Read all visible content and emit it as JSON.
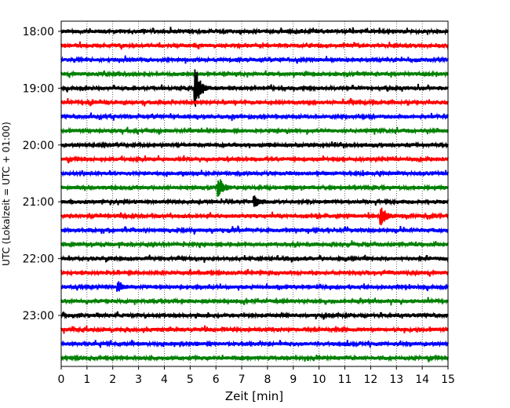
{
  "chart_data": {
    "type": "line",
    "title": "",
    "xlabel": "Zeit  [min]",
    "ylabel": "UTC (Lokalzeit = UTC + 01:00)",
    "xlim": [
      0,
      15
    ],
    "x_ticks": [
      0,
      1,
      2,
      3,
      4,
      5,
      6,
      7,
      8,
      9,
      10,
      11,
      12,
      13,
      14,
      15
    ],
    "y_tick_labels": [
      "18:00",
      "19:00",
      "20:00",
      "21:00",
      "22:00",
      "23:00"
    ],
    "row_start": "18:00",
    "row_interval_minutes": 15,
    "row_count": 24,
    "grid": "vertical dotted",
    "colors": [
      "#000000",
      "#ff0000",
      "#0000ff",
      "#008000"
    ],
    "events": [
      {
        "row": 4,
        "minute": 5.2,
        "amplitude": "large"
      },
      {
        "row": 13,
        "minute": 12.4,
        "amplitude": "medium"
      },
      {
        "row": 11,
        "minute": 6.1,
        "amplitude": "medium"
      },
      {
        "row": 18,
        "minute": 2.2,
        "amplitude": "small"
      },
      {
        "row": 12,
        "minute": 7.5,
        "amplitude": "small"
      }
    ]
  }
}
